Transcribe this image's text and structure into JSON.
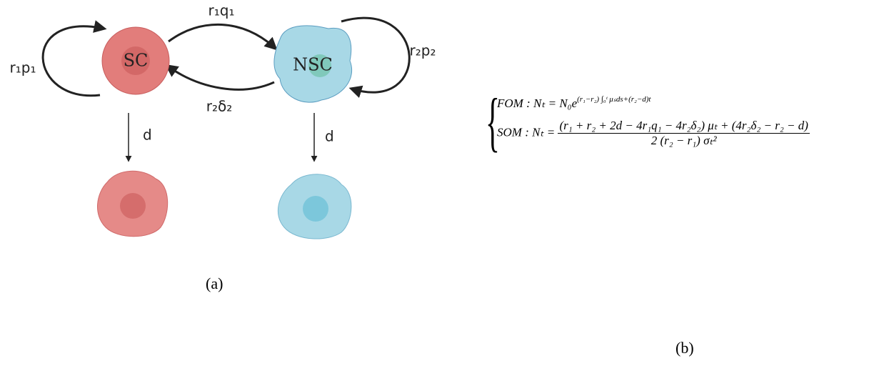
{
  "diagram": {
    "nodes": [
      {
        "label": "SC"
      },
      {
        "label": "NSC"
      }
    ],
    "edges": [
      {
        "label": "r₁q₁"
      },
      {
        "label": "r₂δ₂"
      },
      {
        "label": "r₁p₁"
      },
      {
        "label": "r₂p₂"
      },
      {
        "label": "d"
      },
      {
        "label": "d"
      }
    ],
    "caption": "(a)"
  },
  "equations": {
    "fom": {
      "name": "FOM",
      "lhs": ": Nₜ = N₀e",
      "exponent": "(r₁−r₂) ∫₀ᵗ μₛds+(r₂−d)t"
    },
    "som": {
      "name": "SOM",
      "lhs": ": Nₜ =",
      "numerator": "(r₁ + r₂ + 2d − 4r₁q₁ − 4r₂δ₂) μₜ + (4r₂δ₂ − r₂ − d)",
      "denominator": "2 (r₂ − r₁) σₜ²"
    },
    "caption": "(b)"
  }
}
